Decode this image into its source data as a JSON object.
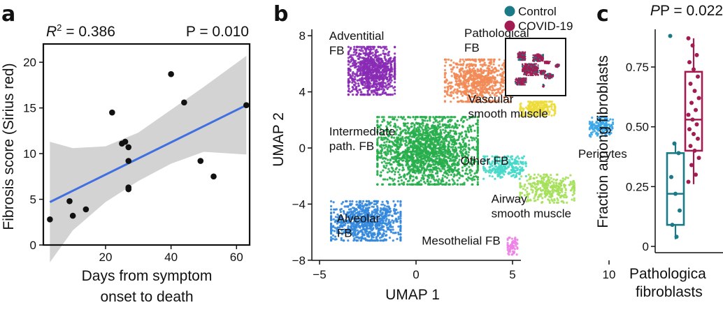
{
  "panels": {
    "a": "a",
    "b": "b",
    "c": "c"
  },
  "chart_data": [
    {
      "type": "scatter",
      "panel": "a",
      "title": "",
      "stats": {
        "r2_prefix": "R",
        "r2_sup": "2",
        "r2_value": " = 0.386",
        "p_text": "P = 0.010"
      },
      "xlabel_lines": [
        "Days from symptom",
        "onset to death"
      ],
      "ylabel": "Fibrosis score (Sirius red)",
      "xlim": [
        1,
        64
      ],
      "ylim": [
        0,
        22
      ],
      "xticks": [
        "20",
        "40",
        "60"
      ],
      "yticks": [
        "0",
        "5",
        "10",
        "15",
        "20"
      ],
      "xtick_values": [
        20,
        40,
        60
      ],
      "ytick_values": [
        0,
        5,
        10,
        15,
        20
      ],
      "points": [
        {
          "x": 3,
          "y": 2.8
        },
        {
          "x": 9,
          "y": 4.8
        },
        {
          "x": 10,
          "y": 3.2
        },
        {
          "x": 14,
          "y": 3.9
        },
        {
          "x": 22,
          "y": 14.5
        },
        {
          "x": 25,
          "y": 11.1
        },
        {
          "x": 26,
          "y": 11.3
        },
        {
          "x": 27,
          "y": 10.7
        },
        {
          "x": 27,
          "y": 9.2
        },
        {
          "x": 27,
          "y": 6.3
        },
        {
          "x": 27,
          "y": 6.1
        },
        {
          "x": 40,
          "y": 18.7
        },
        {
          "x": 44,
          "y": 15.6
        },
        {
          "x": 49,
          "y": 9.2
        },
        {
          "x": 53,
          "y": 7.5
        },
        {
          "x": 63,
          "y": 15.3
        }
      ],
      "fit": {
        "x": [
          3,
          63
        ],
        "y": [
          4.7,
          15.3
        ]
      },
      "band_upper": [
        [
          3,
          11.3
        ],
        [
          10,
          10.6
        ],
        [
          20,
          10.8
        ],
        [
          30,
          12.3
        ],
        [
          40,
          14.8
        ],
        [
          50,
          17.3
        ],
        [
          63,
          20.7
        ]
      ],
      "band_lower": [
        [
          3,
          -1.9
        ],
        [
          10,
          1.6
        ],
        [
          20,
          4.7
        ],
        [
          30,
          7.0
        ],
        [
          40,
          8.9
        ],
        [
          50,
          10.2
        ],
        [
          63,
          9.9
        ]
      ],
      "colors": {
        "point": "#111111",
        "fit": "#3f6fe0",
        "band": "#cbcbcb"
      }
    },
    {
      "type": "scatter",
      "panel": "b",
      "xlabel": "UMAP 1",
      "ylabel": "UMAP 2",
      "xlim": [
        -6,
        11
      ],
      "ylim": [
        -8,
        8.5
      ],
      "xticks": [
        "−5",
        "0",
        "5",
        "10"
      ],
      "yticks": [
        "−8",
        "−4",
        "0",
        "4",
        "8"
      ],
      "xtick_values": [
        -5,
        0,
        5,
        10
      ],
      "ytick_values": [
        -8,
        -4,
        0,
        4,
        8
      ],
      "clusters": [
        {
          "name": "Adventitial FB",
          "lines": [
            "Adventitial",
            "FB"
          ],
          "color": "#8a2bb5",
          "center": [
            -2.3,
            5.5
          ],
          "spread": [
            1.2,
            1.7
          ],
          "n": 900,
          "label_at": [
            -4.5,
            7.7
          ]
        },
        {
          "name": "Pathological FB",
          "lines": [
            "Pathological",
            "FB"
          ],
          "color": "#f28a55",
          "center": [
            3.2,
            4.8
          ],
          "spread": [
            1.7,
            1.5
          ],
          "n": 750,
          "label_at": [
            2.5,
            7.9
          ]
        },
        {
          "name": "Vascular smooth muscle",
          "lines": [
            "Vascular",
            "smooth muscle"
          ],
          "color": "#eddc3a",
          "center": [
            6.3,
            2.8
          ],
          "spread": [
            0.9,
            0.5
          ],
          "n": 220,
          "label_at": [
            2.7,
            3.2
          ]
        },
        {
          "name": "Intermediate path. FB",
          "lines": [
            "Intermediate",
            "path. FB"
          ],
          "color": "#27ae4b",
          "center": [
            0.6,
            -0.2
          ],
          "spread": [
            2.6,
            2.4
          ],
          "n": 1900,
          "label_at": [
            -4.5,
            0.9
          ]
        },
        {
          "name": "Pericytes",
          "lines": [
            "Pericytes"
          ],
          "color": "#3aa6e8",
          "center": [
            9.6,
            1.5
          ],
          "spread": [
            0.6,
            0.7
          ],
          "n": 160,
          "label_at": [
            8.4,
            -0.7
          ]
        },
        {
          "name": "Other FB",
          "lines": [
            "Other FB"
          ],
          "color": "#46d8c9",
          "center": [
            4.6,
            -1.4
          ],
          "spread": [
            1.1,
            0.8
          ],
          "n": 260,
          "label_at": [
            2.3,
            -1.2
          ]
        },
        {
          "name": "Airway smooth muscle",
          "lines": [
            "Airway",
            "smooth muscle"
          ],
          "color": "#a5e05a",
          "center": [
            6.8,
            -2.9
          ],
          "spread": [
            1.4,
            1.0
          ],
          "n": 320,
          "label_at": [
            3.9,
            -3.9
          ]
        },
        {
          "name": "Alveolar FB",
          "lines": [
            "Alveolar",
            "FB"
          ],
          "color": "#3488dd",
          "center": [
            -2.6,
            -5.2
          ],
          "spread": [
            1.8,
            1.4
          ],
          "n": 850,
          "label_at": [
            -4.1,
            -5.3
          ]
        },
        {
          "name": "Mesothelial FB",
          "lines": [
            "Mesothelial FB"
          ],
          "color": "#ee82e6",
          "center": [
            5.0,
            -7.0
          ],
          "spread": [
            0.25,
            0.6
          ],
          "n": 70,
          "label_at": [
            0.3,
            -6.9
          ]
        }
      ],
      "legend": [
        {
          "label": "Control",
          "color": "#1a7a87"
        },
        {
          "label": "COVID-19",
          "color": "#a21c52"
        }
      ],
      "inset": {
        "covid_color": "#a21c52",
        "control_color": "#1a7a87"
      }
    },
    {
      "type": "box",
      "panel": "c",
      "title": "P = 0.022",
      "ylabel": "Fraction among fibroblasts",
      "xlabel_lines": [
        "Pathologica",
        "fibroblasts"
      ],
      "ylim": [
        0,
        0.9
      ],
      "yticks": [
        "0",
        "0.25",
        "0.50",
        "0.75"
      ],
      "ytick_values": [
        0,
        0.25,
        0.5,
        0.75
      ],
      "groups": [
        {
          "name": "Control",
          "color": "#1a7a87",
          "q1": 0.09,
          "median": 0.22,
          "q3": 0.39,
          "whisker_low": 0.03,
          "whisker_high": 0.43,
          "points": [
            0.88,
            0.43,
            0.39,
            0.29,
            0.22,
            0.15,
            0.09,
            0.04
          ]
        },
        {
          "name": "COVID-19",
          "color": "#a21c52",
          "q1": 0.4,
          "median": 0.53,
          "q3": 0.73,
          "whisker_low": 0.26,
          "whisker_high": 0.87,
          "points": [
            0.87,
            0.84,
            0.8,
            0.77,
            0.74,
            0.71,
            0.68,
            0.65,
            0.62,
            0.6,
            0.57,
            0.55,
            0.53,
            0.51,
            0.49,
            0.47,
            0.45,
            0.42,
            0.4,
            0.37,
            0.34,
            0.3,
            0.27
          ]
        }
      ]
    }
  ]
}
